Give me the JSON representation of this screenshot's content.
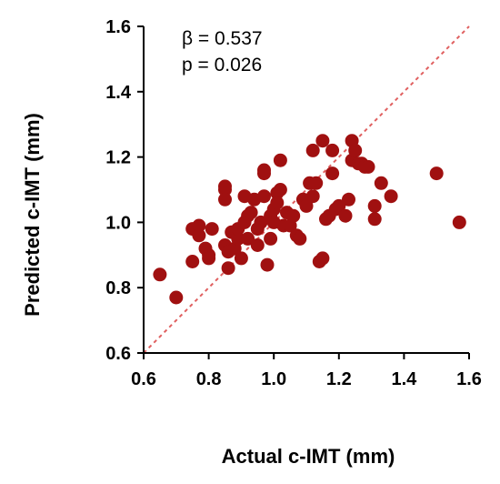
{
  "chart_data": {
    "type": "scatter",
    "xlabel": "Actual c-IMT (mm)",
    "ylabel": "Predicted c-IMT (mm)",
    "xlim": [
      0.6,
      1.6
    ],
    "ylim": [
      0.6,
      1.6
    ],
    "x_ticks": [
      "0.6",
      "0.8",
      "1.0",
      "1.2",
      "1.4",
      "1.6"
    ],
    "y_ticks": [
      "0.6",
      "0.8",
      "1.0",
      "1.2",
      "1.4",
      "1.6"
    ],
    "annotations": [
      "β = 0.537",
      "p = 0.026"
    ],
    "reference_line": {
      "type": "identity",
      "style": "dashed",
      "from": [
        0.6,
        0.6
      ],
      "to": [
        1.6,
        1.6
      ]
    },
    "grid": false,
    "marker_color": "#a01010",
    "reference_line_color": "#e06060",
    "points": [
      [
        0.65,
        0.84
      ],
      [
        0.7,
        0.77
      ],
      [
        0.75,
        0.98
      ],
      [
        0.75,
        0.88
      ],
      [
        0.77,
        0.99
      ],
      [
        0.77,
        0.96
      ],
      [
        0.79,
        0.92
      ],
      [
        0.8,
        0.9
      ],
      [
        0.8,
        0.89
      ],
      [
        0.81,
        0.98
      ],
      [
        0.85,
        1.11
      ],
      [
        0.85,
        1.1
      ],
      [
        0.85,
        1.07
      ],
      [
        0.85,
        0.93
      ],
      [
        0.86,
        0.86
      ],
      [
        0.86,
        0.91
      ],
      [
        0.87,
        0.97
      ],
      [
        0.88,
        0.92
      ],
      [
        0.89,
        0.95
      ],
      [
        0.89,
        0.98
      ],
      [
        0.9,
        0.89
      ],
      [
        0.91,
        1.0
      ],
      [
        0.91,
        1.08
      ],
      [
        0.92,
        0.95
      ],
      [
        0.92,
        1.02
      ],
      [
        0.93,
        1.03
      ],
      [
        0.94,
        1.07
      ],
      [
        0.95,
        0.98
      ],
      [
        0.95,
        0.93
      ],
      [
        0.96,
        1.0
      ],
      [
        0.97,
        1.16
      ],
      [
        0.97,
        1.15
      ],
      [
        0.97,
        1.08
      ],
      [
        0.98,
        0.87
      ],
      [
        0.99,
        1.02
      ],
      [
        0.99,
        0.95
      ],
      [
        1.0,
        1.0
      ],
      [
        1.0,
        1.04
      ],
      [
        1.01,
        1.09
      ],
      [
        1.01,
        1.06
      ],
      [
        1.02,
        1.19
      ],
      [
        1.02,
        1.1
      ],
      [
        1.03,
        0.99
      ],
      [
        1.04,
        1.03
      ],
      [
        1.05,
        0.99
      ],
      [
        1.06,
        1.02
      ],
      [
        1.07,
        0.96
      ],
      [
        1.08,
        0.95
      ],
      [
        1.09,
        1.07
      ],
      [
        1.1,
        1.05
      ],
      [
        1.11,
        1.12
      ],
      [
        1.12,
        1.08
      ],
      [
        1.12,
        1.22
      ],
      [
        1.13,
        1.12
      ],
      [
        1.14,
        0.88
      ],
      [
        1.15,
        1.25
      ],
      [
        1.15,
        0.89
      ],
      [
        1.16,
        1.01
      ],
      [
        1.17,
        1.02
      ],
      [
        1.18,
        1.22
      ],
      [
        1.18,
        1.15
      ],
      [
        1.19,
        1.04
      ],
      [
        1.2,
        1.05
      ],
      [
        1.22,
        1.02
      ],
      [
        1.23,
        1.07
      ],
      [
        1.24,
        1.25
      ],
      [
        1.24,
        1.19
      ],
      [
        1.25,
        1.22
      ],
      [
        1.26,
        1.18
      ],
      [
        1.27,
        1.18
      ],
      [
        1.28,
        1.17
      ],
      [
        1.29,
        1.17
      ],
      [
        1.31,
        1.01
      ],
      [
        1.31,
        1.05
      ],
      [
        1.33,
        1.12
      ],
      [
        1.36,
        1.08
      ],
      [
        1.5,
        1.15
      ],
      [
        1.57,
        1.0
      ]
    ]
  }
}
